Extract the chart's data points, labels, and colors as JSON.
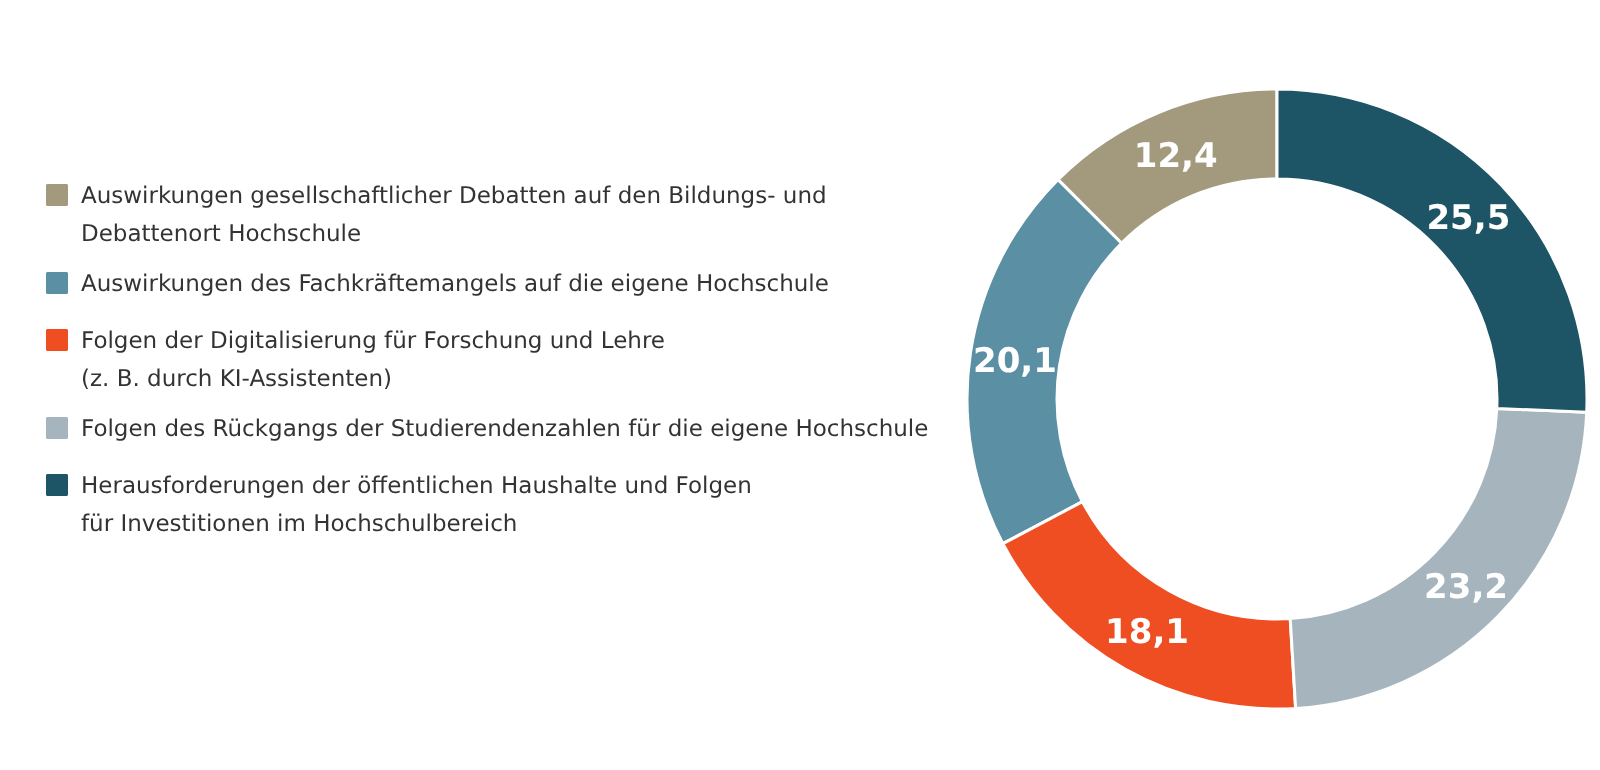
{
  "chart_data": {
    "type": "donut",
    "categories": [
      "Auswirkungen gesellschaftlicher Debatten auf den Bildungs- und\nDebattenort Hochschule",
      "Auswirkungen des Fachkräftemangels auf die eigene Hochschule",
      "Folgen der Digitalisierung für Forschung und Lehre\n(z. B. durch KI-Assistenten)",
      "Folgen des Rückgangs der Studierendenzahlen für die eigene Hochschule",
      "Herausforderungen der öffentlichen Haushalte und Folgen\nfür Investitionen im Hochschulbereich"
    ],
    "values": [
      12.4,
      20.1,
      18.1,
      23.2,
      25.5
    ],
    "colors": [
      "#a39a7e",
      "#5b8fa3",
      "#ef4e23",
      "#a6b4be",
      "#1d5466"
    ],
    "value_labels": [
      "12,4",
      "20,1",
      "18,1",
      "23,2",
      "25,5"
    ],
    "legend": "left"
  }
}
